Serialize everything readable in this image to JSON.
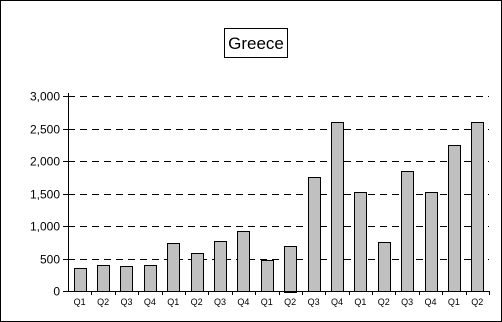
{
  "chart_data": {
    "type": "bar",
    "title": "Greece",
    "xlabel": "",
    "ylabel": "",
    "categories": [
      "Q1",
      "Q2",
      "Q3",
      "Q4",
      "Q1",
      "Q2",
      "Q3",
      "Q4",
      "Q1",
      "Q2",
      "Q3",
      "Q4",
      "Q1",
      "Q2",
      "Q3",
      "Q4",
      "Q1",
      "Q2"
    ],
    "values": [
      350,
      400,
      390,
      400,
      740,
      580,
      770,
      930,
      470,
      700,
      1750,
      2600,
      1530,
      760,
      1850,
      1530,
      2250,
      2600
    ],
    "ylim": [
      0,
      3000
    ],
    "yticks": [
      0,
      500,
      1000,
      1500,
      2000,
      2500,
      3000
    ],
    "ytick_labels": [
      "0",
      "500",
      "1,000",
      "1,500",
      "2,000",
      "2,500",
      "3,000"
    ],
    "grid": "horizontal dashed",
    "legend": "none",
    "colors": {
      "bar_fill": "#c0c0c0",
      "bar_stroke": "#000000",
      "grid": "#000000"
    }
  }
}
